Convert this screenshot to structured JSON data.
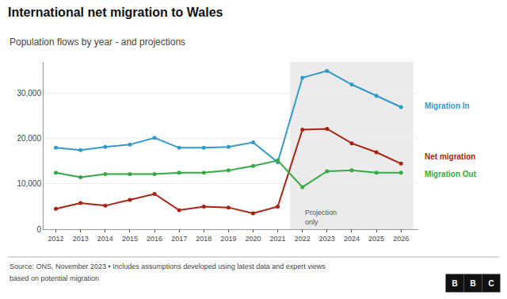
{
  "chart_data": {
    "type": "line",
    "title": "International net migration to Wales",
    "subtitle": "Population flows by year - and projections",
    "footer": [
      "Source: ONS, November 2023 • Includes assumptions developed using latest data and expert views",
      "based on potential migration"
    ],
    "logo": "BBC",
    "projection_start": 2022,
    "projection_label": "Projection\nonly",
    "x": [
      2012,
      2013,
      2014,
      2015,
      2016,
      2017,
      2018,
      2019,
      2020,
      2021,
      2022,
      2023,
      2024,
      2025,
      2026
    ],
    "series": [
      {
        "name": "Migration In",
        "color": "#3399cc",
        "marker": "circle",
        "line_style": "solid",
        "values": [
          18000,
          17500,
          18200,
          18700,
          20200,
          18000,
          18000,
          18200,
          19200,
          14800,
          33500,
          35000,
          32000,
          29500,
          27000
        ]
      },
      {
        "name": "Net migration",
        "color": "#aa2211",
        "marker": "circle",
        "line_style": "solid",
        "values": [
          4500,
          5800,
          5200,
          6500,
          7800,
          4200,
          5000,
          4800,
          3500,
          5000,
          22000,
          22200,
          19000,
          17000,
          14500
        ]
      },
      {
        "name": "Migration Out",
        "color": "#33aa44",
        "marker": "circle",
        "line_style": "solid",
        "values": [
          12500,
          11500,
          12200,
          12200,
          12200,
          12500,
          12500,
          13000,
          14000,
          15200,
          9300,
          12800,
          13000,
          12500,
          12500
        ]
      }
    ],
    "xlim": [
      2011.5,
      2026.7
    ],
    "xticks": [
      2012,
      2013,
      2014,
      2015,
      2016,
      2017,
      2018,
      2019,
      2020,
      2021,
      2022,
      2023,
      2024,
      2025,
      2026
    ],
    "ylim": [
      0,
      37000
    ],
    "yticks": [
      0,
      {
        "value": 10000,
        "label": "10,000"
      },
      {
        "value": 20000,
        "label": "20,000"
      },
      {
        "value": 30000,
        "label": "30,000"
      }
    ],
    "grid": true
  }
}
